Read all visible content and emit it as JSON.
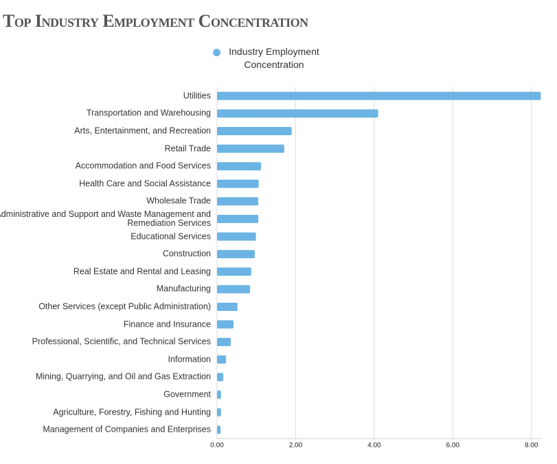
{
  "chart_data": {
    "type": "hbar",
    "title": "Top Industry Employment Concentration",
    "categories": [
      "Utilities",
      "Transportation and Warehousing",
      "Arts, Entertainment, and Recreation",
      "Retail Trade",
      "Accommodation and Food Services",
      "Health Care and Social Assistance",
      "Wholesale Trade",
      "Administrative and Support and Waste Management and Remediation Services",
      "Educational Services",
      "Construction",
      "Real Estate and Rental and Leasing",
      "Manufacturing",
      "Other Services (except Public Administration)",
      "Finance and Insurance",
      "Professional, Scientific, and Technical Services",
      "Information",
      "Mining, Quarrying, and Oil and Gas Extraction",
      "Government",
      "Agriculture, Forestry, Fishing and Hunting",
      "Management of Companies and Enterprises"
    ],
    "series": [
      {
        "name": "Industry Employment Concentration",
        "color": "#6cb4e4",
        "values": [
          8.24,
          4.1,
          1.9,
          1.71,
          1.12,
          1.06,
          1.05,
          1.05,
          0.99,
          0.96,
          0.87,
          0.84,
          0.52,
          0.42,
          0.35,
          0.23,
          0.16,
          0.1,
          0.1,
          0.09
        ]
      }
    ],
    "xlim": [
      0,
      8.25
    ],
    "xticks": [
      {
        "value": 0,
        "label": "0.00"
      },
      {
        "value": 2,
        "label": "2.00"
      },
      {
        "value": 4,
        "label": "4.00"
      },
      {
        "value": 6,
        "label": "6.00"
      },
      {
        "value": 8,
        "label": "8.00"
      }
    ],
    "grid": true
  }
}
